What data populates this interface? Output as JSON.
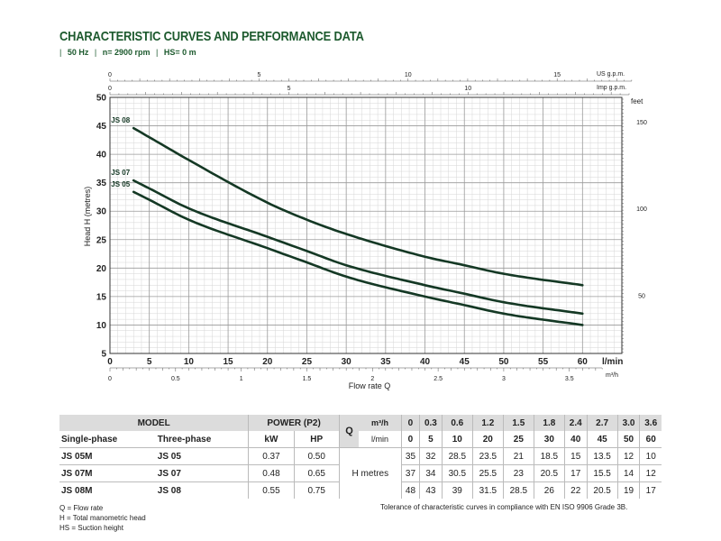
{
  "header": {
    "title": "CHARACTERISTIC CURVES AND PERFORMANCE DATA",
    "freq": "50 Hz",
    "speed": "n= 2900 rpm",
    "suction": "HS= 0 m"
  },
  "chart_data": {
    "type": "line",
    "xlabel": "Flow rate Q",
    "x_unit": "l/min",
    "ylabel": "Head H (metres)",
    "right_unit": "feet",
    "xlim": [
      0,
      65
    ],
    "ylim": [
      5,
      50
    ],
    "x_ticks": [
      0,
      5,
      10,
      15,
      20,
      25,
      30,
      35,
      40,
      45,
      50,
      55,
      60
    ],
    "y_ticks": [
      5,
      10,
      15,
      20,
      25,
      30,
      35,
      40,
      45,
      50
    ],
    "feet_ticks": [
      50,
      100,
      150
    ],
    "usgpm_unit": "US g.p.m.",
    "usgpm_ticks": [
      0,
      5,
      10,
      15
    ],
    "impgpm_unit": "Imp g.p.m.",
    "impgpm_ticks": [
      0,
      5,
      10
    ],
    "m3h_unit": "m³/h",
    "m3h_ticks": [
      "0",
      "0.5",
      "1",
      "1.5",
      "2",
      "2.5",
      "3",
      "3.5"
    ],
    "m3h_values": [
      0,
      0.5,
      1,
      1.5,
      2,
      2.5,
      3,
      3.5
    ],
    "series": [
      {
        "name": "JS 08",
        "x": [
          5,
          10,
          20,
          25,
          30,
          40,
          45,
          50,
          60
        ],
        "y": [
          43,
          39,
          31.5,
          28.5,
          26,
          22,
          20.5,
          19,
          17
        ]
      },
      {
        "name": "JS 07",
        "x": [
          5,
          10,
          20,
          25,
          30,
          40,
          45,
          50,
          60
        ],
        "y": [
          34,
          30.5,
          25.5,
          23,
          20.5,
          17,
          15.5,
          14,
          12
        ]
      },
      {
        "name": "JS 05",
        "x": [
          5,
          10,
          20,
          25,
          30,
          40,
          45,
          50,
          60
        ],
        "y": [
          32,
          28.5,
          23.5,
          21,
          18.5,
          15,
          13.5,
          12,
          10
        ]
      }
    ],
    "grid": true
  },
  "table": {
    "model_header": "MODEL",
    "power_header": "POWER (P2)",
    "single_phase": "Single-phase",
    "three_phase": "Three-phase",
    "kw": "kW",
    "hp": "HP",
    "q_label": "Q",
    "q_unit_m3h": "m³/h",
    "q_unit_lmin": "l/min",
    "h_label": "H  metres",
    "q_m3h": [
      "0",
      "0.3",
      "0.6",
      "1.2",
      "1.5",
      "1.8",
      "2.4",
      "2.7",
      "3.0",
      "3.6"
    ],
    "q_lmin": [
      "0",
      "5",
      "10",
      "20",
      "25",
      "30",
      "40",
      "45",
      "50",
      "60"
    ],
    "rows": [
      {
        "single": "JS 05M",
        "three": "JS 05",
        "kw": "0.37",
        "hp": "0.50",
        "h": [
          "35",
          "32",
          "28.5",
          "23.5",
          "21",
          "18.5",
          "15",
          "13.5",
          "12",
          "10"
        ]
      },
      {
        "single": "JS 07M",
        "three": "JS 07",
        "kw": "0.48",
        "hp": "0.65",
        "h": [
          "37",
          "34",
          "30.5",
          "25.5",
          "23",
          "20.5",
          "17",
          "15.5",
          "14",
          "12"
        ]
      },
      {
        "single": "JS 08M",
        "three": "JS 08",
        "kw": "0.55",
        "hp": "0.75",
        "h": [
          "48",
          "43",
          "39",
          "31.5",
          "28.5",
          "26",
          "22",
          "20.5",
          "19",
          "17"
        ]
      }
    ]
  },
  "notes": {
    "q": "Q = Flow rate",
    "h": "H = Total manometric head",
    "hs": "HS = Suction height",
    "tolerance": "Tolerance of characteristic curves in compliance with EN ISO 9906 Grade 3B."
  }
}
